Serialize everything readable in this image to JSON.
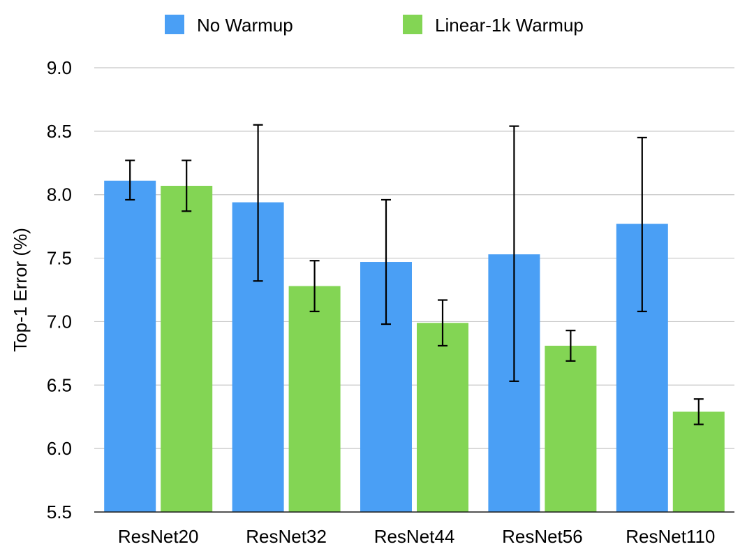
{
  "chart_data": {
    "type": "bar",
    "title": "",
    "xlabel": "",
    "ylabel": "Top-1 Error (%)",
    "ylim": [
      5.5,
      9.0
    ],
    "yticks": [
      "5.5",
      "6.0",
      "6.5",
      "7.0",
      "7.5",
      "8.0",
      "8.5",
      "9.0"
    ],
    "grid": true,
    "legend_position": "top-center",
    "categories": [
      "ResNet20",
      "ResNet32",
      "ResNet44",
      "ResNet56",
      "ResNet110"
    ],
    "series": [
      {
        "name": "No Warmup",
        "color": "#4a9ff5",
        "values": [
          8.11,
          7.94,
          7.47,
          7.53,
          7.77
        ],
        "error_low": [
          7.96,
          7.32,
          6.98,
          6.53,
          7.08
        ],
        "error_high": [
          8.27,
          8.55,
          7.96,
          8.54,
          8.45
        ]
      },
      {
        "name": "Linear-1k Warmup",
        "color": "#83d554",
        "values": [
          8.07,
          7.28,
          6.99,
          6.81,
          6.29
        ],
        "error_low": [
          7.87,
          7.08,
          6.81,
          6.69,
          6.19
        ],
        "error_high": [
          8.27,
          7.48,
          7.17,
          6.93,
          6.39
        ]
      }
    ]
  }
}
